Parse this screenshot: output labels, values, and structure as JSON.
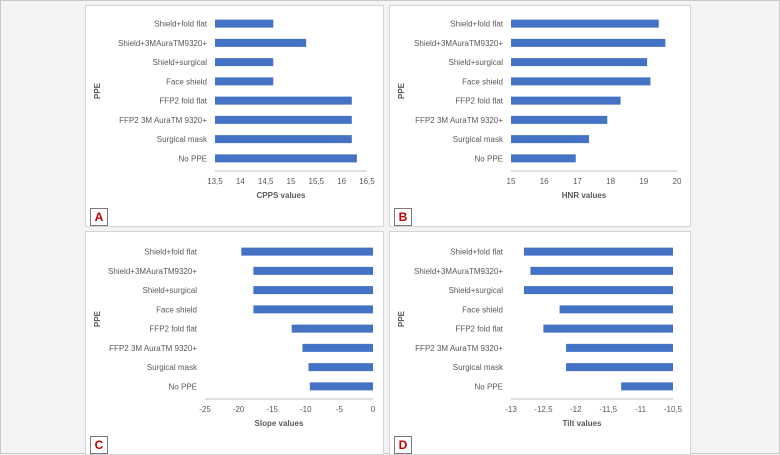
{
  "colors": {
    "bar": "#4472c4",
    "axis": "#bfbfbf",
    "text": "#595959",
    "label": "#c00000"
  },
  "chart_data": [
    {
      "type": "bar",
      "orientation": "horizontal",
      "panel_label": "A",
      "categories": [
        "Shield+fold flat",
        "Shield+3MAuraTM9320+",
        "Shield+surgical",
        "Face shield",
        "FFP2 fold flat",
        "FFP2 3M AuraTM 9320+",
        "Surgical mask",
        "No PPE"
      ],
      "values": [
        14.65,
        15.3,
        14.65,
        14.65,
        16.2,
        16.2,
        16.2,
        16.3
      ],
      "xlabel": "CPPS values",
      "ylabel": "PPE",
      "xlim": [
        13.5,
        16.5
      ],
      "ticks": [
        13.5,
        14,
        14.5,
        15,
        15.5,
        16,
        16.5
      ],
      "tick_labels": [
        "13,5",
        "14",
        "14,5",
        "15",
        "15,5",
        "16",
        "16,5"
      ]
    },
    {
      "type": "bar",
      "orientation": "horizontal",
      "panel_label": "B",
      "categories": [
        "Shield+fold flat",
        "Shield+3MAuraTM9320+",
        "Shield+surgical",
        "Face shield",
        "FFP2 fold flat",
        "FFP2 3M AuraTM 9320+",
        "Surgical mask",
        "No PPE"
      ],
      "values": [
        19.45,
        19.65,
        19.1,
        19.2,
        18.3,
        17.9,
        17.35,
        16.95
      ],
      "xlabel": "HNR values",
      "ylabel": "PPE",
      "xlim": [
        15,
        20
      ],
      "ticks": [
        15,
        16,
        17,
        18,
        19,
        20
      ],
      "tick_labels": [
        "15",
        "16",
        "17",
        "18",
        "19",
        "20"
      ]
    },
    {
      "type": "bar",
      "orientation": "horizontal",
      "panel_label": "C",
      "categories": [
        "Shield+fold flat",
        "Shield+3MAuraTM9320+",
        "Shield+surgical",
        "Face shield",
        "FFP2 fold flat",
        "FFP2 3M AuraTM 9320+",
        "Surgical mask",
        "No PPE"
      ],
      "values": [
        -19.6,
        -17.8,
        -17.8,
        -17.8,
        -12.1,
        -10.5,
        -9.6,
        -9.4
      ],
      "xlabel": "Slope values",
      "ylabel": "PPE",
      "xlim": [
        -25,
        0
      ],
      "ticks": [
        -25,
        -20,
        -15,
        -10,
        -5,
        0
      ],
      "tick_labels": [
        "-25",
        "-20",
        "-15",
        "-10",
        "-5",
        "0"
      ]
    },
    {
      "type": "bar",
      "orientation": "horizontal",
      "panel_label": "D",
      "categories": [
        "Shield+fold flat",
        "Shield+3MAuraTM9320+",
        "Shield+surgical",
        "Face shield",
        "FFP2 fold flat",
        "FFP2 3M AuraTM 9320+",
        "Surgical mask",
        "No PPE"
      ],
      "values": [
        -12.8,
        -12.7,
        -12.8,
        -12.25,
        -12.5,
        -12.15,
        -12.15,
        -11.3
      ],
      "xlabel": "Tilt values",
      "ylabel": "PPE",
      "xlim": [
        -13,
        -10.5
      ],
      "ticks": [
        -13,
        -12.5,
        -12,
        -11.5,
        -11,
        -10.5
      ],
      "tick_labels": [
        "-13",
        "-12,5",
        "-12",
        "-11,5",
        "-11",
        "-10,5"
      ]
    }
  ]
}
